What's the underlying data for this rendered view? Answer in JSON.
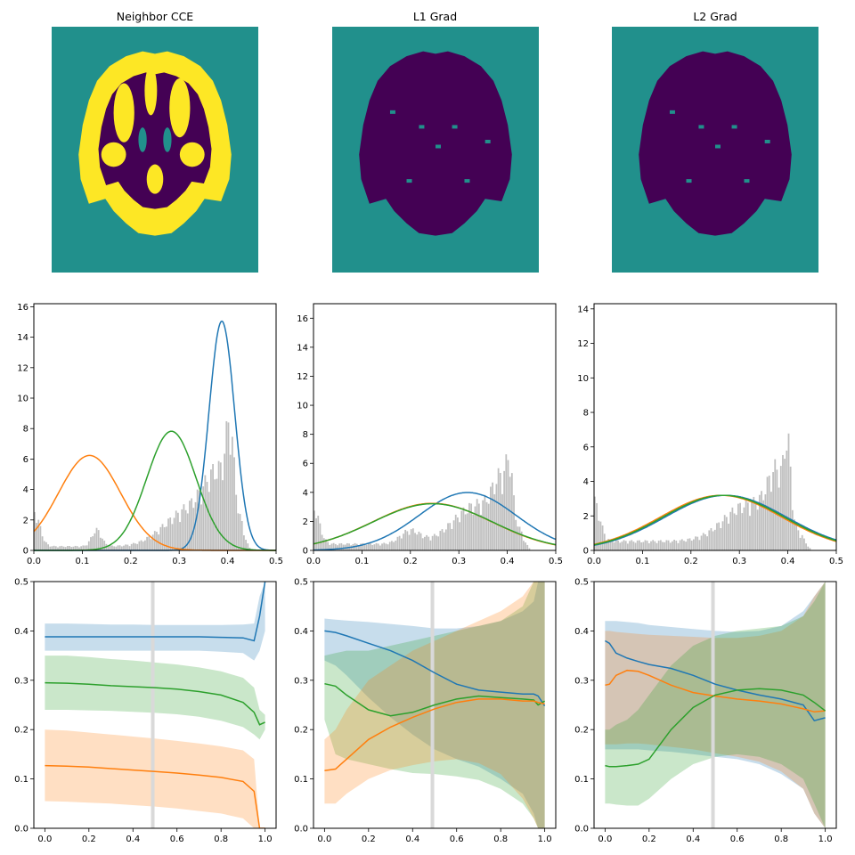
{
  "colors": {
    "blue": "#1f77b4",
    "orange": "#ff7f0e",
    "green": "#2ca02c",
    "teal": "#21908c",
    "purple": "#440154",
    "yellow": "#fde725",
    "hist": "#bfbfbf",
    "vline": "#d9d9d9"
  },
  "chart_data": [
    {
      "type": "image",
      "panel": "segmentation",
      "title": "Neighbor CCE",
      "classes": [
        "background",
        "white-matter",
        "gray-matter"
      ],
      "colormap": "viridis"
    },
    {
      "type": "image",
      "panel": "segmentation",
      "title": "L1 Grad",
      "classes": [
        "background",
        "brain"
      ],
      "colormap": "viridis"
    },
    {
      "type": "image",
      "panel": "segmentation",
      "title": "L2 Grad",
      "classes": [
        "background",
        "brain"
      ],
      "colormap": "viridis"
    },
    {
      "type": "histogram",
      "xlim": [
        0,
        0.5
      ],
      "ylim": [
        0,
        16.2
      ],
      "xticks": [
        "0.0",
        "0.1",
        "0.2",
        "0.3",
        "0.4",
        "0.5"
      ],
      "yticks": [
        "0",
        "2",
        "4",
        "6",
        "8",
        "10",
        "12",
        "14",
        "16"
      ],
      "ytick_values": [
        0,
        2,
        4,
        6,
        8,
        10,
        12,
        14,
        16
      ],
      "gaussians": [
        {
          "color": "blue",
          "mean": 0.388,
          "std": 0.0265
        },
        {
          "color": "orange",
          "mean": 0.115,
          "std": 0.064
        },
        {
          "color": "green",
          "mean": 0.284,
          "std": 0.051
        }
      ],
      "histogram_profile": "bimodal-sharp"
    },
    {
      "type": "histogram",
      "xlim": [
        0,
        0.5
      ],
      "ylim": [
        0,
        17
      ],
      "xticks": [
        "0.0",
        "0.1",
        "0.2",
        "0.3",
        "0.4",
        "0.5"
      ],
      "yticks": [
        "0",
        "2",
        "4",
        "6",
        "8",
        "10",
        "12",
        "14",
        "16"
      ],
      "ytick_values": [
        0,
        2,
        4,
        6,
        8,
        10,
        12,
        14,
        16
      ],
      "gaussians": [
        {
          "color": "blue",
          "mean": 0.318,
          "std": 0.1
        },
        {
          "color": "orange",
          "mean": 0.245,
          "std": 0.123
        },
        {
          "color": "green",
          "mean": 0.246,
          "std": 0.124
        }
      ],
      "histogram_profile": "right-peak"
    },
    {
      "type": "histogram",
      "xlim": [
        0,
        0.5
      ],
      "ylim": [
        0,
        14.3
      ],
      "xticks": [
        "0.0",
        "0.1",
        "0.2",
        "0.3",
        "0.4",
        "0.5"
      ],
      "yticks": [
        "0",
        "2",
        "4",
        "6",
        "8",
        "10",
        "12",
        "14"
      ],
      "ytick_values": [
        0,
        2,
        4,
        6,
        8,
        10,
        12,
        14
      ],
      "gaussians": [
        {
          "color": "blue",
          "mean": 0.272,
          "std": 0.125
        },
        {
          "color": "orange",
          "mean": 0.262,
          "std": 0.125
        },
        {
          "color": "green",
          "mean": 0.267,
          "std": 0.125
        }
      ],
      "histogram_profile": "right-peak-flat"
    },
    {
      "type": "line",
      "xlim": [
        -0.05,
        1.05
      ],
      "ylim": [
        0,
        0.5
      ],
      "xticks": [
        "0.0",
        "0.2",
        "0.4",
        "0.6",
        "0.8",
        "1.0"
      ],
      "xtick_values": [
        0,
        0.2,
        0.4,
        0.6,
        0.8,
        1.0
      ],
      "yticks": [
        "0.0",
        "0.1",
        "0.2",
        "0.3",
        "0.4",
        "0.5"
      ],
      "ytick_values": [
        0,
        0.1,
        0.2,
        0.3,
        0.4,
        0.5
      ],
      "vline": 0.49,
      "x": [
        0,
        0.1,
        0.2,
        0.3,
        0.4,
        0.5,
        0.6,
        0.7,
        0.8,
        0.9,
        0.95,
        0.975,
        1.0
      ],
      "series": [
        {
          "color": "blue",
          "values": [
            0.388,
            0.388,
            0.388,
            0.388,
            0.388,
            0.388,
            0.388,
            0.388,
            0.387,
            0.386,
            0.38,
            0.43,
            0.5
          ],
          "lower": [
            0.36,
            0.36,
            0.36,
            0.36,
            0.36,
            0.36,
            0.36,
            0.36,
            0.358,
            0.355,
            0.34,
            0.36,
            0.4
          ],
          "upper": [
            0.415,
            0.415,
            0.414,
            0.413,
            0.413,
            0.412,
            0.412,
            0.412,
            0.412,
            0.413,
            0.415,
            0.47,
            0.5
          ]
        },
        {
          "color": "green",
          "values": [
            0.295,
            0.294,
            0.292,
            0.289,
            0.287,
            0.285,
            0.282,
            0.277,
            0.27,
            0.255,
            0.235,
            0.21,
            0.215
          ],
          "lower": [
            0.24,
            0.24,
            0.239,
            0.238,
            0.236,
            0.234,
            0.231,
            0.226,
            0.218,
            0.205,
            0.19,
            0.18,
            0.2
          ],
          "upper": [
            0.35,
            0.35,
            0.347,
            0.343,
            0.34,
            0.336,
            0.332,
            0.326,
            0.318,
            0.305,
            0.285,
            0.24,
            0.23
          ]
        },
        {
          "color": "orange",
          "values": [
            0.127,
            0.126,
            0.124,
            0.121,
            0.118,
            0.115,
            0.112,
            0.108,
            0.103,
            0.095,
            0.075,
            0.0,
            0.0
          ],
          "lower": [
            0.055,
            0.054,
            0.052,
            0.05,
            0.047,
            0.044,
            0.04,
            0.035,
            0.03,
            0.02,
            0.0,
            0.0,
            0.0
          ],
          "upper": [
            0.2,
            0.198,
            0.194,
            0.19,
            0.186,
            0.182,
            0.177,
            0.172,
            0.166,
            0.158,
            0.14,
            0.0,
            0.0
          ]
        }
      ]
    },
    {
      "type": "line",
      "xlim": [
        -0.05,
        1.05
      ],
      "ylim": [
        0,
        0.5
      ],
      "xticks": [
        "0.0",
        "0.2",
        "0.4",
        "0.6",
        "0.8",
        "1.0"
      ],
      "xtick_values": [
        0,
        0.2,
        0.4,
        0.6,
        0.8,
        1.0
      ],
      "yticks": [
        "0.0",
        "0.1",
        "0.2",
        "0.3",
        "0.4",
        "0.5"
      ],
      "ytick_values": [
        0,
        0.1,
        0.2,
        0.3,
        0.4,
        0.5
      ],
      "vline": 0.49,
      "x": [
        0,
        0.05,
        0.1,
        0.2,
        0.3,
        0.4,
        0.5,
        0.6,
        0.7,
        0.8,
        0.9,
        0.95,
        0.97,
        1.0
      ],
      "series": [
        {
          "color": "blue",
          "values": [
            0.4,
            0.397,
            0.39,
            0.375,
            0.36,
            0.34,
            0.315,
            0.292,
            0.28,
            0.276,
            0.272,
            0.272,
            0.268,
            0.248
          ],
          "lower": [
            0.34,
            0.33,
            0.31,
            0.265,
            0.225,
            0.19,
            0.16,
            0.14,
            0.125,
            0.1,
            0.07,
            0.03,
            0.0,
            0.0
          ],
          "upper": [
            0.425,
            0.423,
            0.421,
            0.418,
            0.414,
            0.41,
            0.405,
            0.405,
            0.41,
            0.42,
            0.44,
            0.46,
            0.5,
            0.5
          ]
        },
        {
          "color": "green",
          "values": [
            0.293,
            0.288,
            0.27,
            0.24,
            0.228,
            0.235,
            0.25,
            0.262,
            0.268,
            0.265,
            0.262,
            0.26,
            0.25,
            0.258
          ],
          "lower": [
            0.22,
            0.15,
            0.14,
            0.13,
            0.12,
            0.112,
            0.11,
            0.105,
            0.098,
            0.08,
            0.05,
            0.02,
            0.0,
            0.0
          ],
          "upper": [
            0.35,
            0.355,
            0.36,
            0.36,
            0.37,
            0.38,
            0.39,
            0.4,
            0.41,
            0.42,
            0.45,
            0.5,
            0.5,
            0.5
          ]
        },
        {
          "color": "orange",
          "values": [
            0.117,
            0.12,
            0.14,
            0.18,
            0.205,
            0.225,
            0.242,
            0.255,
            0.262,
            0.262,
            0.258,
            0.258,
            0.255,
            0.252
          ],
          "lower": [
            0.05,
            0.05,
            0.07,
            0.1,
            0.118,
            0.128,
            0.136,
            0.14,
            0.132,
            0.11,
            0.06,
            0.02,
            0.0,
            0.0
          ],
          "upper": [
            0.18,
            0.2,
            0.24,
            0.3,
            0.33,
            0.36,
            0.38,
            0.4,
            0.42,
            0.44,
            0.47,
            0.5,
            0.5,
            0.5
          ]
        }
      ]
    },
    {
      "type": "line",
      "xlim": [
        -0.05,
        1.05
      ],
      "ylim": [
        0,
        0.5
      ],
      "xticks": [
        "0.0",
        "0.2",
        "0.4",
        "0.6",
        "0.8",
        "1.0"
      ],
      "xtick_values": [
        0,
        0.2,
        0.4,
        0.6,
        0.8,
        1.0
      ],
      "yticks": [
        "0.0",
        "0.1",
        "0.2",
        "0.3",
        "0.4",
        "0.5"
      ],
      "ytick_values": [
        0,
        0.1,
        0.2,
        0.3,
        0.4,
        0.5
      ],
      "vline": 0.49,
      "x": [
        0,
        0.02,
        0.05,
        0.1,
        0.15,
        0.2,
        0.3,
        0.4,
        0.5,
        0.6,
        0.7,
        0.8,
        0.9,
        0.95,
        1.0
      ],
      "series": [
        {
          "color": "blue",
          "values": [
            0.38,
            0.375,
            0.355,
            0.345,
            0.338,
            0.332,
            0.324,
            0.31,
            0.292,
            0.28,
            0.27,
            0.262,
            0.25,
            0.218,
            0.224
          ],
          "lower": [
            0.16,
            0.16,
            0.16,
            0.16,
            0.16,
            0.158,
            0.155,
            0.15,
            0.145,
            0.14,
            0.13,
            0.11,
            0.08,
            0.03,
            0.0
          ],
          "upper": [
            0.42,
            0.42,
            0.42,
            0.418,
            0.416,
            0.412,
            0.408,
            0.404,
            0.4,
            0.398,
            0.4,
            0.41,
            0.44,
            0.47,
            0.5
          ]
        },
        {
          "color": "orange",
          "values": [
            0.29,
            0.292,
            0.31,
            0.32,
            0.318,
            0.31,
            0.29,
            0.275,
            0.268,
            0.262,
            0.258,
            0.252,
            0.242,
            0.236,
            0.238
          ],
          "lower": [
            0.17,
            0.17,
            0.17,
            0.172,
            0.172,
            0.17,
            0.165,
            0.16,
            0.152,
            0.145,
            0.135,
            0.115,
            0.08,
            0.03,
            0.0
          ],
          "upper": [
            0.4,
            0.4,
            0.398,
            0.396,
            0.394,
            0.392,
            0.39,
            0.388,
            0.386,
            0.386,
            0.39,
            0.4,
            0.43,
            0.47,
            0.5
          ]
        },
        {
          "color": "green",
          "values": [
            0.127,
            0.125,
            0.125,
            0.127,
            0.13,
            0.14,
            0.2,
            0.245,
            0.27,
            0.28,
            0.283,
            0.28,
            0.27,
            0.255,
            0.238
          ],
          "lower": [
            0.05,
            0.05,
            0.048,
            0.046,
            0.046,
            0.06,
            0.1,
            0.13,
            0.145,
            0.15,
            0.145,
            0.13,
            0.1,
            0.05,
            0.0
          ],
          "upper": [
            0.2,
            0.2,
            0.21,
            0.22,
            0.24,
            0.27,
            0.33,
            0.37,
            0.39,
            0.4,
            0.405,
            0.41,
            0.43,
            0.46,
            0.5
          ]
        }
      ]
    }
  ]
}
